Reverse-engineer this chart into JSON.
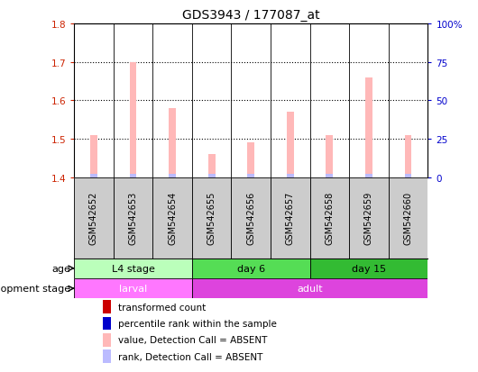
{
  "title": "GDS3943 / 177087_at",
  "samples": [
    "GSM542652",
    "GSM542653",
    "GSM542654",
    "GSM542655",
    "GSM542656",
    "GSM542657",
    "GSM542658",
    "GSM542659",
    "GSM542660"
  ],
  "bar_values": [
    1.51,
    1.7,
    1.58,
    1.46,
    1.49,
    1.57,
    1.51,
    1.66,
    1.51
  ],
  "bar_bottom": 1.4,
  "ylim": [
    1.4,
    1.8
  ],
  "yticks_left": [
    1.4,
    1.5,
    1.6,
    1.7,
    1.8
  ],
  "yticks_right": [
    0,
    25,
    50,
    75,
    100
  ],
  "right_ylabels": [
    "0",
    "25",
    "50",
    "75",
    "100%"
  ],
  "grid_lines": [
    1.5,
    1.6,
    1.7
  ],
  "bar_color_absent": "#FFB8B8",
  "rank_color_absent": "#BBBBFF",
  "left_tick_color": "#CC2200",
  "right_tick_color": "#0000CC",
  "age_groups": [
    {
      "label": "L4 stage",
      "start": 0,
      "end": 3,
      "color": "#BBFFBB"
    },
    {
      "label": "day 6",
      "start": 3,
      "end": 6,
      "color": "#55DD55"
    },
    {
      "label": "day 15",
      "start": 6,
      "end": 9,
      "color": "#33BB33"
    }
  ],
  "dev_groups": [
    {
      "label": "larval",
      "start": 0,
      "end": 3,
      "color": "#FF77FF"
    },
    {
      "label": "adult",
      "start": 3,
      "end": 9,
      "color": "#DD44DD"
    }
  ],
  "age_label": "age",
  "dev_label": "development stage",
  "legend_items": [
    {
      "label": "transformed count",
      "color": "#CC0000"
    },
    {
      "label": "percentile rank within the sample",
      "color": "#0000CC"
    },
    {
      "label": "value, Detection Call = ABSENT",
      "color": "#FFB8B8"
    },
    {
      "label": "rank, Detection Call = ABSENT",
      "color": "#BBBBFF"
    }
  ],
  "title_fontsize": 10,
  "tick_fontsize": 7.5,
  "label_fontsize": 8,
  "sample_fontsize": 7,
  "bg": "#FFFFFF"
}
